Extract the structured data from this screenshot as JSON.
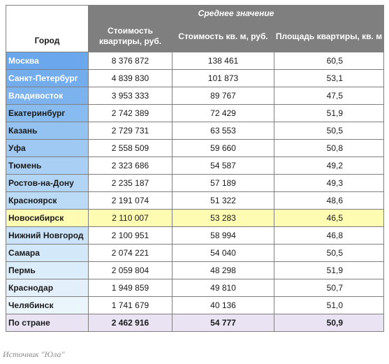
{
  "table": {
    "header": {
      "city_label": "Город",
      "group_label": "Среднее значение",
      "col_price": "Стоимость квартиры, руб.",
      "col_sqm": "Стоимость кв. м, руб.",
      "col_area": "Площадь квартиры, кв. м"
    },
    "rows": [
      {
        "city": "Москва",
        "price": "8 376 872",
        "sqm": "138 461",
        "area": "60,5",
        "city_bg": "#6aa7ec",
        "city_color": "#ffffff"
      },
      {
        "city": "Санкт-Петербург",
        "price": "4 839 830",
        "sqm": "101 873",
        "area": "53,1",
        "city_bg": "#73aded",
        "city_color": "#ffffff"
      },
      {
        "city": "Владивосток",
        "price": "3 953 333",
        "sqm": "89 767",
        "area": "47,5",
        "city_bg": "#7cb3ef",
        "city_color": "#ffffff"
      },
      {
        "city": "Екатеринбург",
        "price": "2 742 389",
        "sqm": "72 429",
        "area": "51,9",
        "city_bg": "#88bbf0",
        "city_color": "#1a1a1a"
      },
      {
        "city": "Казань",
        "price": "2 729 731",
        "sqm": "63 553",
        "area": "50,5",
        "city_bg": "#94c2f1",
        "city_color": "#1a1a1a"
      },
      {
        "city": "Уфа",
        "price": "2 558 509",
        "sqm": "59 660",
        "area": "50,8",
        "city_bg": "#9fc9f3",
        "city_color": "#1a1a1a"
      },
      {
        "city": "Тюмень",
        "price": "2 323 686",
        "sqm": "54 587",
        "area": "49,2",
        "city_bg": "#a9cff4",
        "city_color": "#1a1a1a"
      },
      {
        "city": "Ростов-на-Дону",
        "price": "2 235 187",
        "sqm": "57 189",
        "area": "49,3",
        "city_bg": "#b2d4f5",
        "city_color": "#1a1a1a"
      },
      {
        "city": "Красноярск",
        "price": "2 191 074",
        "sqm": "51 322",
        "area": "48,6",
        "city_bg": "#bbdaf6",
        "city_color": "#1a1a1a"
      },
      {
        "city": "Новосибирск",
        "price": "2 110 007",
        "sqm": "53 283",
        "area": "46,5",
        "city_bg": "#fefbb3",
        "city_color": "#1a1a1a",
        "highlight": true
      },
      {
        "city": "Нижний Новгород",
        "price": "2 100 951",
        "sqm": "58 994",
        "area": "46,8",
        "city_bg": "#cbe3f8",
        "city_color": "#1a1a1a"
      },
      {
        "city": "Самара",
        "price": "2 074 221",
        "sqm": "54 040",
        "area": "50,5",
        "city_bg": "#d3e8f9",
        "city_color": "#1a1a1a"
      },
      {
        "city": "Пермь",
        "price": "2 059 804",
        "sqm": "48 298",
        "area": "51,9",
        "city_bg": "#dbecfa",
        "city_color": "#1a1a1a"
      },
      {
        "city": "Краснодар",
        "price": "1 949 859",
        "sqm": "49 810",
        "area": "50,7",
        "city_bg": "#e3f0fb",
        "city_color": "#1a1a1a"
      },
      {
        "city": "Челябинск",
        "price": "1 741 679",
        "sqm": "40 136",
        "area": "51,0",
        "city_bg": "#ebf5fc",
        "city_color": "#1a1a1a"
      }
    ],
    "total": {
      "city": "По стране",
      "price": "2 462 916",
      "sqm": "54 777",
      "area": "50,9"
    }
  },
  "source": "Источник \"Юла\"",
  "colors": {
    "header_bg": "#7f7f7f",
    "highlight_bg": "#fefbb3",
    "total_bg": "#e9e3f4",
    "border": "#7f7f7f"
  }
}
